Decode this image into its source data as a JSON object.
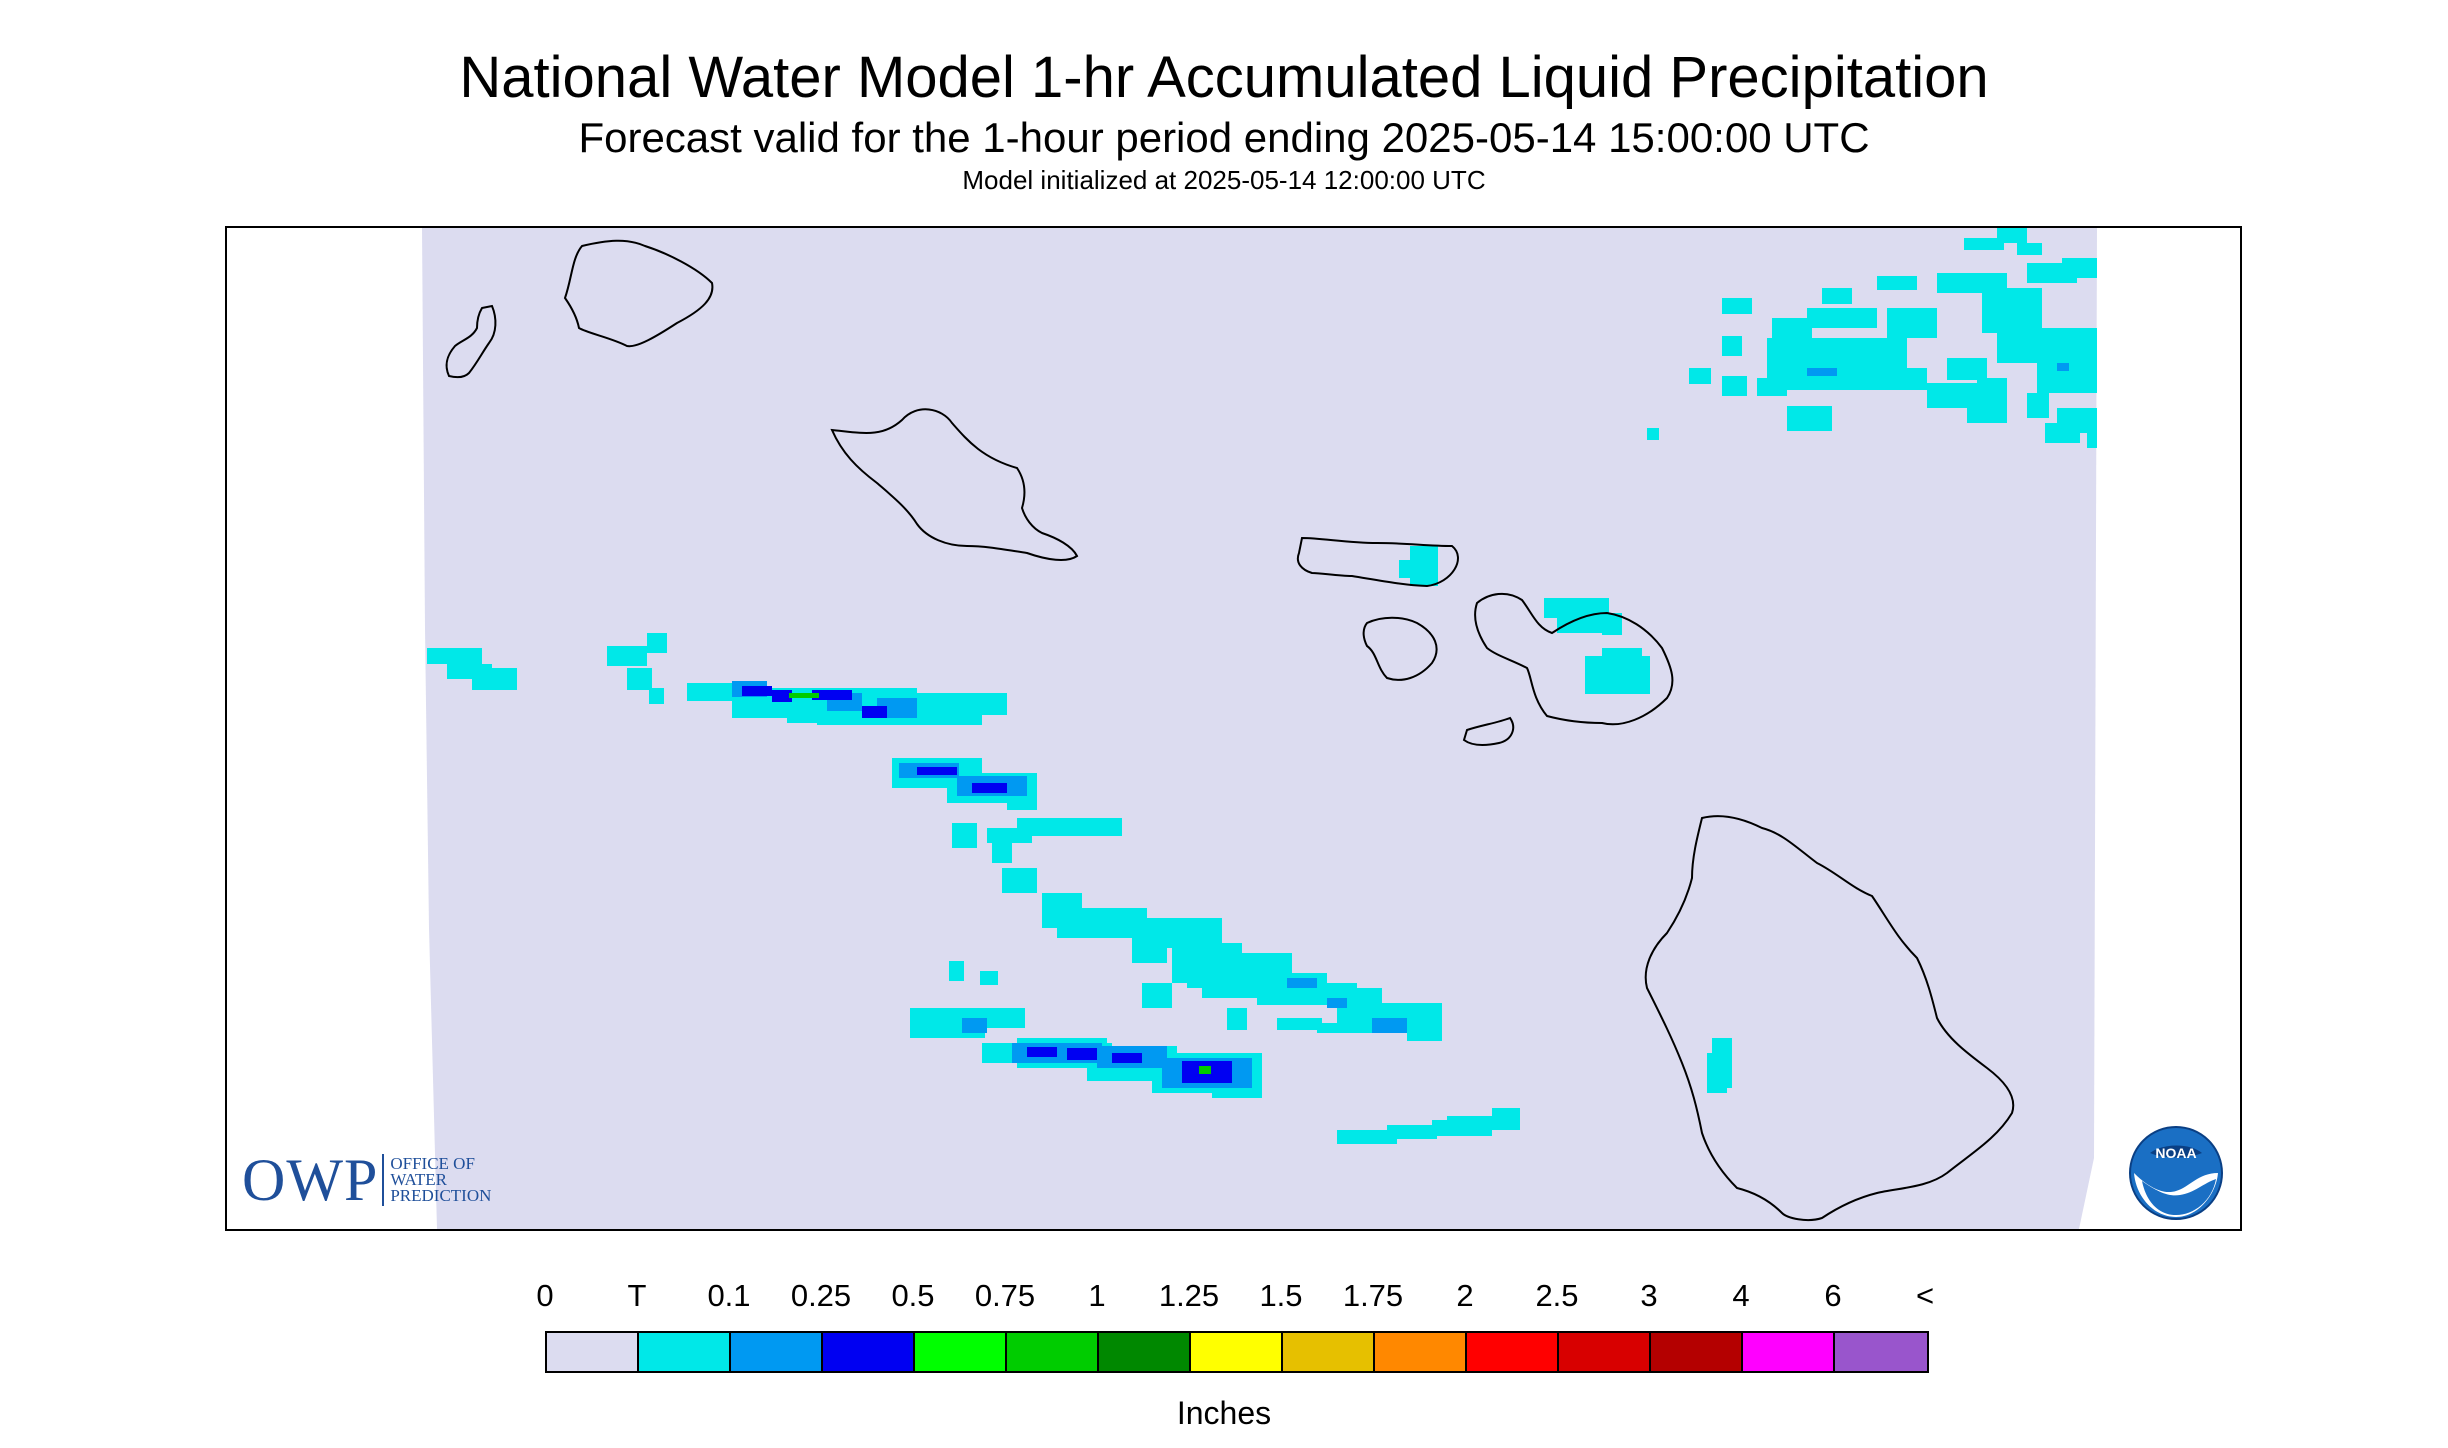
{
  "title": "National Water Model 1-hr Accumulated Liquid Precipitation",
  "subtitle": "Forecast valid for the 1-hour period ending 2025-05-14 15:00:00 UTC",
  "init_line": "Model initialized at 2025-05-14 12:00:00 UTC",
  "legend": {
    "unit": "Inches",
    "ticks": [
      "0",
      "T",
      "0.1",
      "0.25",
      "0.5",
      "0.75",
      "1",
      "1.25",
      "1.5",
      "1.75",
      "2",
      "2.5",
      "3",
      "4",
      "6",
      "<"
    ],
    "colors": [
      "#dcdcf0",
      "#00e8e8",
      "#0099f2",
      "#0000f2",
      "#00ff00",
      "#00cc00",
      "#008800",
      "#ffff00",
      "#e6c000",
      "#ff8800",
      "#ff0000",
      "#d80000",
      "#b40000",
      "#ff00ff",
      "#9955cc"
    ]
  },
  "logos": {
    "owp_letters": "OWP",
    "owp_office": "OFFICE OF WATER PREDICTION",
    "noaa": "NOAA"
  },
  "colors": {
    "background_field": "#dcdcf0",
    "coastline": "#000000",
    "owp_blue": "#1f4f9a",
    "noaa_blue": "#1a6fc4"
  }
}
